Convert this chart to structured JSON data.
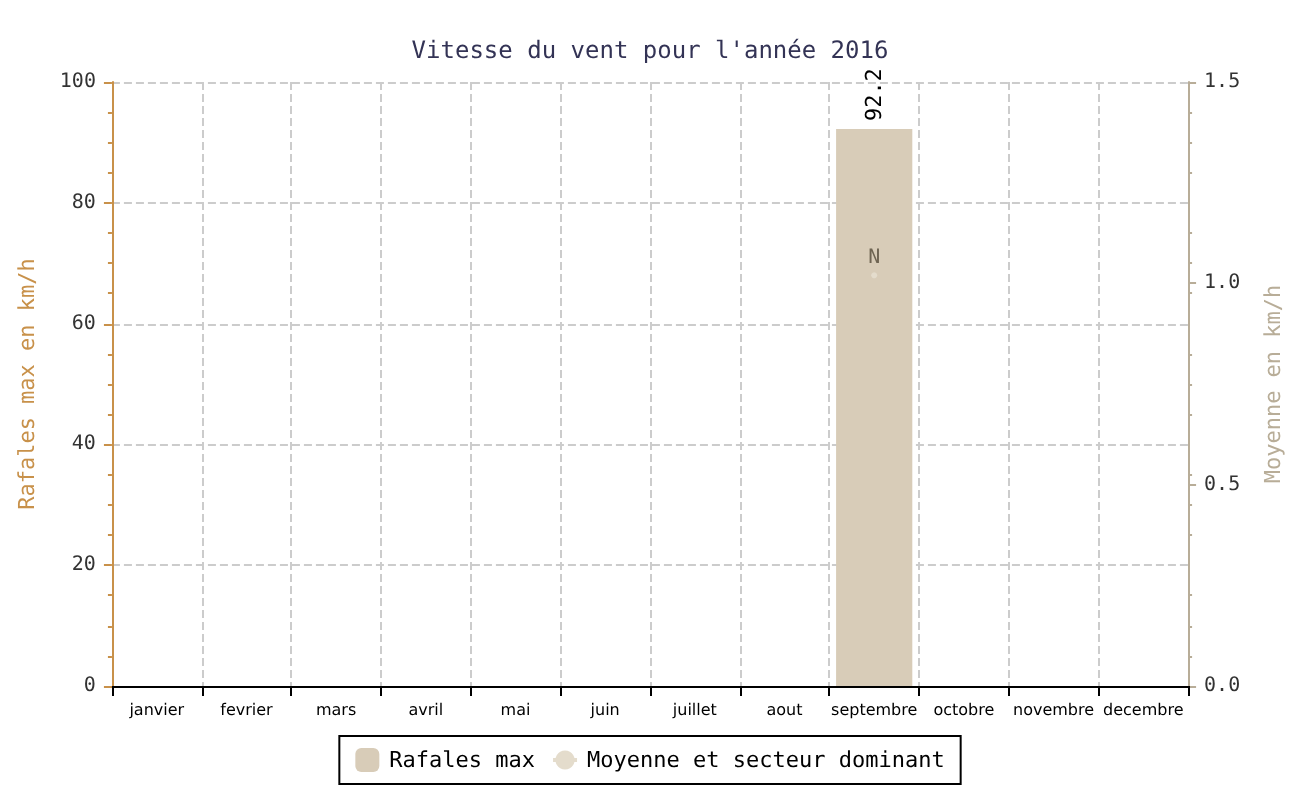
{
  "chart_data": {
    "type": "bar",
    "title": "Vitesse du vent pour l'année 2016",
    "ylabel": "Rafales max en km/h",
    "y2label": "Moyenne en km/h",
    "categories": [
      "janvier",
      "fevrier",
      "mars",
      "avril",
      "mai",
      "juin",
      "juillet",
      "aout",
      "septembre",
      "octobre",
      "novembre",
      "decembre"
    ],
    "series": [
      {
        "name": "Rafales max",
        "color": "#d8ccb8",
        "values": [
          null,
          null,
          null,
          null,
          null,
          null,
          null,
          null,
          92.2,
          null,
          null,
          null
        ],
        "value_labels": [
          null,
          null,
          null,
          null,
          null,
          null,
          null,
          null,
          "92.2",
          null,
          null,
          null
        ]
      },
      {
        "name": "Moyenne et secteur dominant",
        "type": "line",
        "axis": "y2",
        "marker": "circle",
        "color": "#e4dccc",
        "values": [
          null,
          null,
          null,
          null,
          null,
          null,
          null,
          null,
          1.02,
          null,
          null,
          null
        ],
        "value_labels": [
          null,
          null,
          null,
          null,
          null,
          null,
          null,
          null,
          "N",
          null,
          null,
          null
        ]
      }
    ],
    "ylim": [
      0,
      100
    ],
    "yticks": [
      0,
      20,
      40,
      60,
      80,
      100
    ],
    "y2lim": [
      0,
      1.5
    ],
    "y2ticks": [
      {
        "value": 0,
        "label": "0.0"
      },
      {
        "value": 0.5,
        "label": "0.5"
      },
      {
        "value": 1,
        "label": "1.0"
      },
      {
        "value": 1.5,
        "label": "1.5"
      }
    ],
    "grid": true,
    "legend": "bottom"
  }
}
